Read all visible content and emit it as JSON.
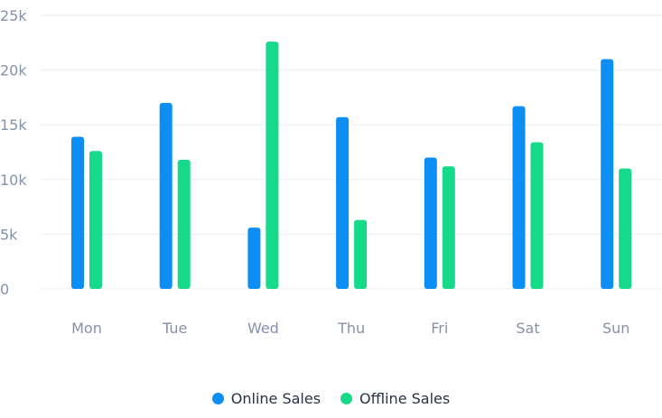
{
  "chart_data": {
    "type": "bar",
    "categories": [
      "Mon",
      "Tue",
      "Wed",
      "Thu",
      "Fri",
      "Sat",
      "Sun"
    ],
    "series": [
      {
        "name": "Online Sales",
        "color": "#0d8ef5",
        "values": [
          13900,
          17000,
          5600,
          15700,
          12000,
          16700,
          21000
        ]
      },
      {
        "name": "Offline Sales",
        "color": "#16d98a",
        "values": [
          12600,
          11800,
          22600,
          6300,
          11200,
          13400,
          11000
        ]
      }
    ],
    "ylim": [
      0,
      25000
    ],
    "yticks": [
      {
        "value": 0,
        "label": "0"
      },
      {
        "value": 5000,
        "label": "5k"
      },
      {
        "value": 10000,
        "label": "10k"
      },
      {
        "value": 15000,
        "label": "15k"
      },
      {
        "value": 20000,
        "label": "20k"
      },
      {
        "value": 25000,
        "label": "25k"
      }
    ],
    "grid": true,
    "legend_position": "bottom-center"
  }
}
